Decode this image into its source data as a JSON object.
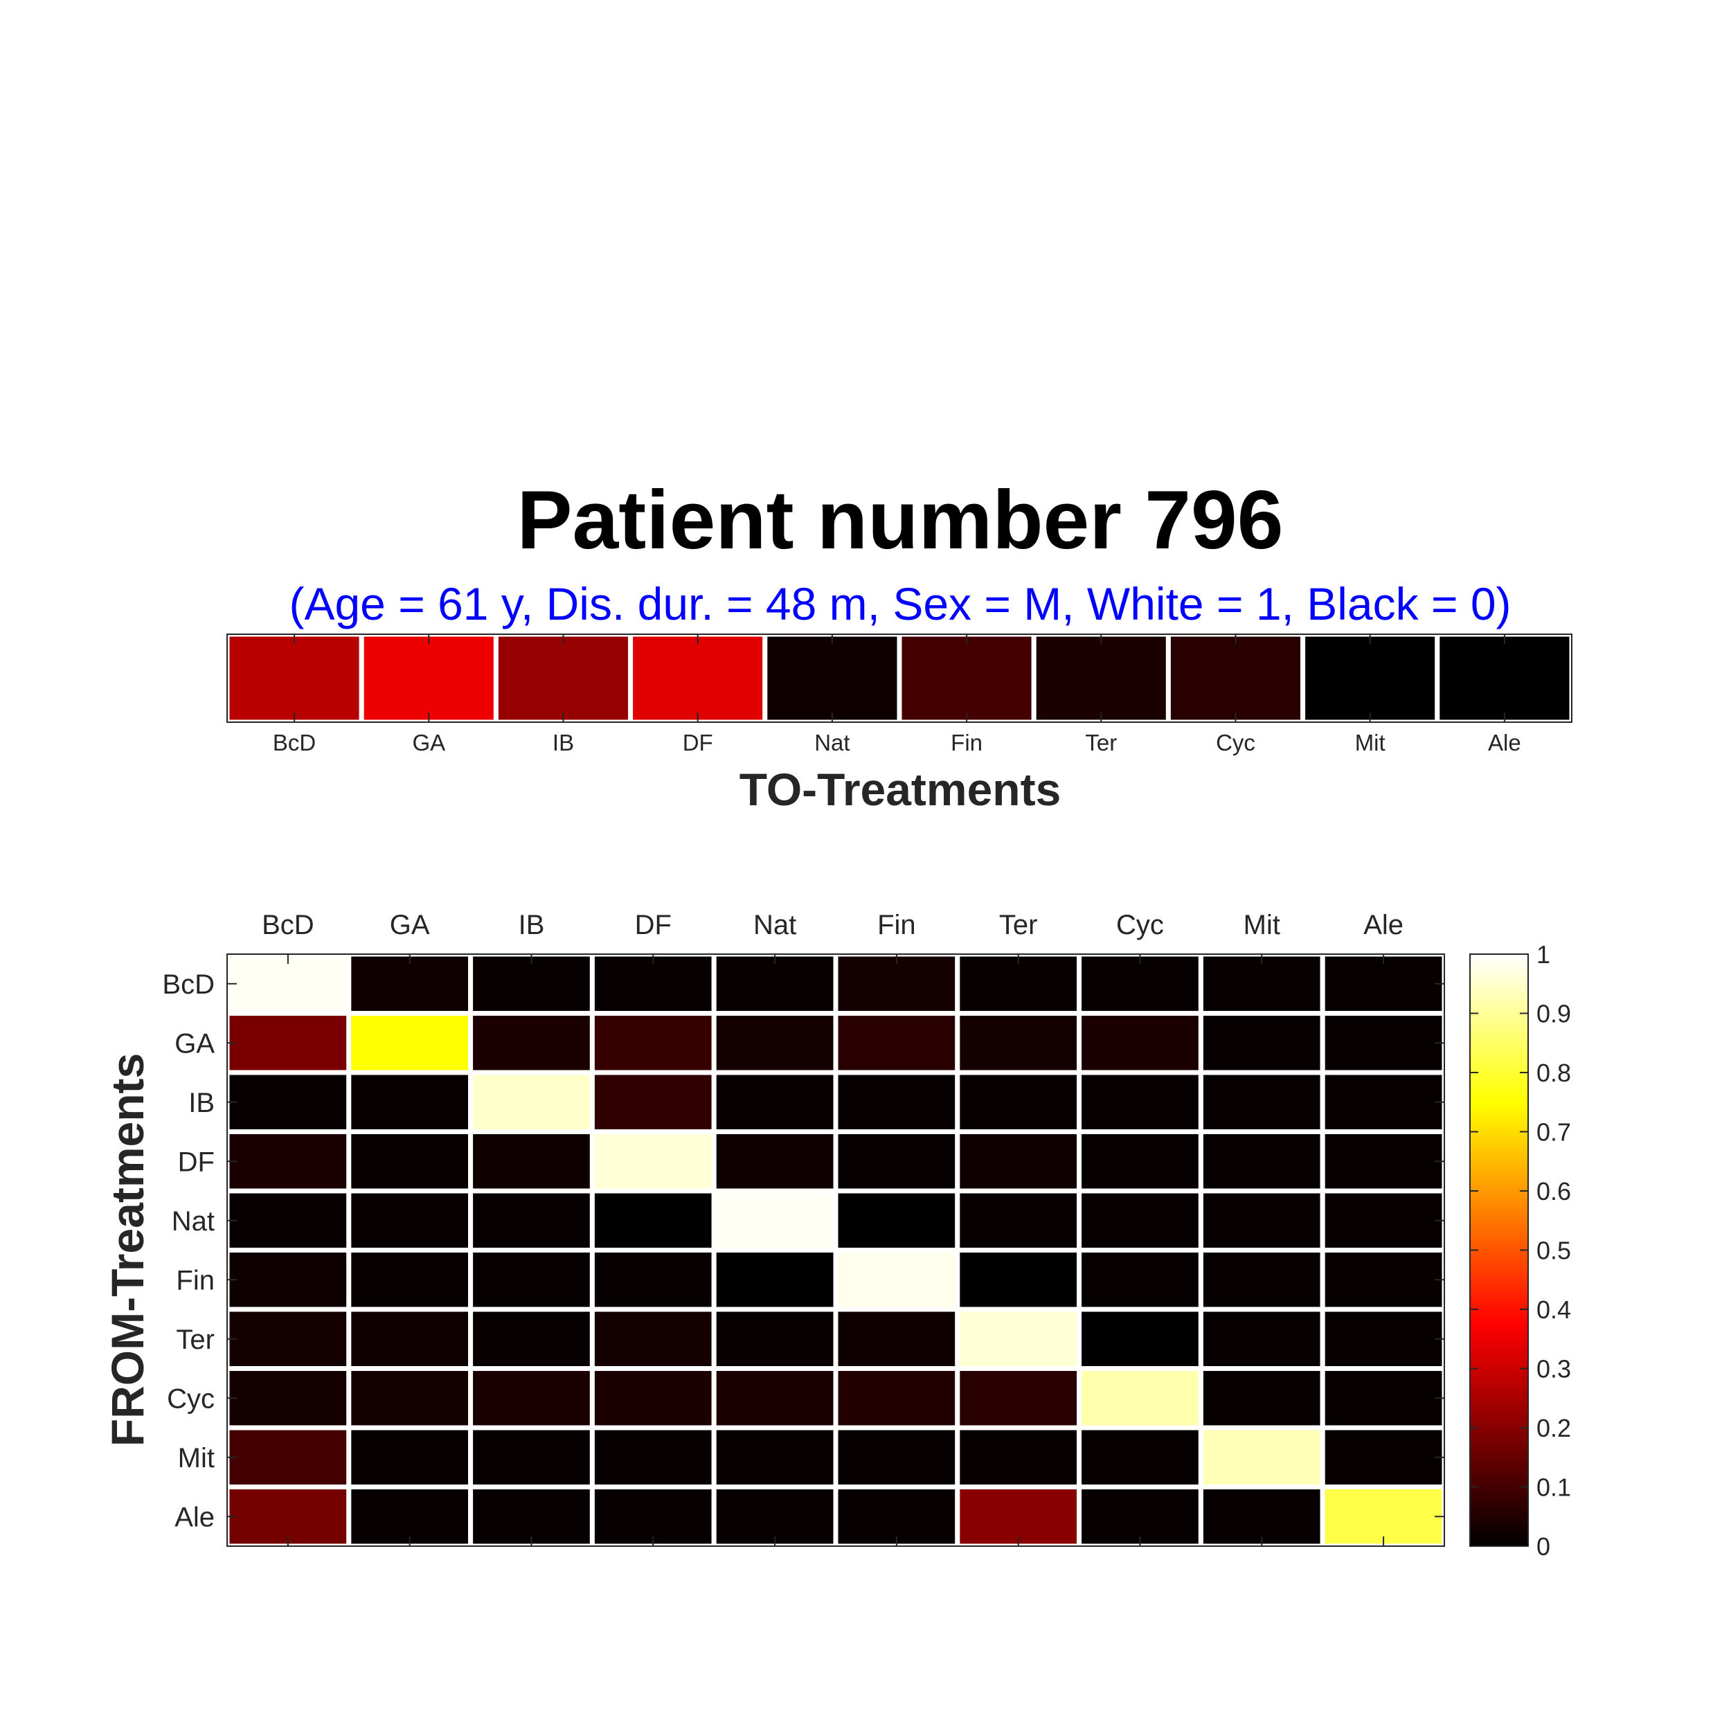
{
  "chart_data": [
    {
      "type": "heatmap",
      "title": "Patient number 796",
      "subtitle": "(Age = 61 y, Dis. dur. = 48 m, Sex = M, White = 1, Black = 0)",
      "xlabel": "TO-Treatments",
      "ylabel": "",
      "x_categories": [
        "BcD",
        "GA",
        "IB",
        "DF",
        "Nat",
        "Fin",
        "Ter",
        "Cyc",
        "Mit",
        "Ale"
      ],
      "values": [
        [
          0.27,
          0.35,
          0.22,
          0.33,
          0.02,
          0.1,
          0.04,
          0.06,
          0.0,
          0.0
        ]
      ],
      "clim": [
        0,
        1
      ],
      "colormap": "hot"
    },
    {
      "type": "heatmap",
      "title": "",
      "xlabel": "",
      "ylabel": "FROM-Treatments",
      "x_categories": [
        "BcD",
        "GA",
        "IB",
        "DF",
        "Nat",
        "Fin",
        "Ter",
        "Cyc",
        "Mit",
        "Ale"
      ],
      "y_categories": [
        "BcD",
        "GA",
        "IB",
        "DF",
        "Nat",
        "Fin",
        "Ter",
        "Cyc",
        "Mit",
        "Ale"
      ],
      "x_ticks_position": "top",
      "values": [
        [
          0.99,
          0.02,
          0.01,
          0.01,
          0.01,
          0.03,
          0.01,
          0.01,
          0.01,
          0.01
        ],
        [
          0.18,
          0.75,
          0.04,
          0.08,
          0.03,
          0.06,
          0.03,
          0.04,
          0.01,
          0.01
        ],
        [
          0.01,
          0.01,
          0.95,
          0.07,
          0.01,
          0.01,
          0.01,
          0.01,
          0.01,
          0.01
        ],
        [
          0.04,
          0.01,
          0.02,
          0.96,
          0.02,
          0.01,
          0.02,
          0.01,
          0.01,
          0.01
        ],
        [
          0.01,
          0.01,
          0.01,
          0.0,
          0.99,
          0.0,
          0.01,
          0.01,
          0.01,
          0.01
        ],
        [
          0.02,
          0.01,
          0.01,
          0.01,
          0.0,
          0.98,
          0.0,
          0.01,
          0.01,
          0.01
        ],
        [
          0.03,
          0.02,
          0.01,
          0.03,
          0.01,
          0.02,
          0.96,
          0.0,
          0.01,
          0.01
        ],
        [
          0.03,
          0.03,
          0.04,
          0.04,
          0.04,
          0.05,
          0.06,
          0.92,
          0.01,
          0.01
        ],
        [
          0.1,
          0.01,
          0.01,
          0.01,
          0.01,
          0.01,
          0.01,
          0.01,
          0.93,
          0.01
        ],
        [
          0.17,
          0.01,
          0.01,
          0.01,
          0.01,
          0.01,
          0.2,
          0.01,
          0.01,
          0.82
        ]
      ],
      "colorbar": {
        "ticks": [
          "0",
          "0.1",
          "0.2",
          "0.3",
          "0.4",
          "0.5",
          "0.6",
          "0.7",
          "0.8",
          "0.9",
          "1"
        ],
        "range": [
          0,
          1
        ]
      },
      "clim": [
        0,
        1
      ],
      "colormap": "hot"
    }
  ],
  "colors": {
    "subtitle": "#0000ff",
    "title": "#000000",
    "grid_lines": "#ffffff",
    "frame": "#262626"
  }
}
